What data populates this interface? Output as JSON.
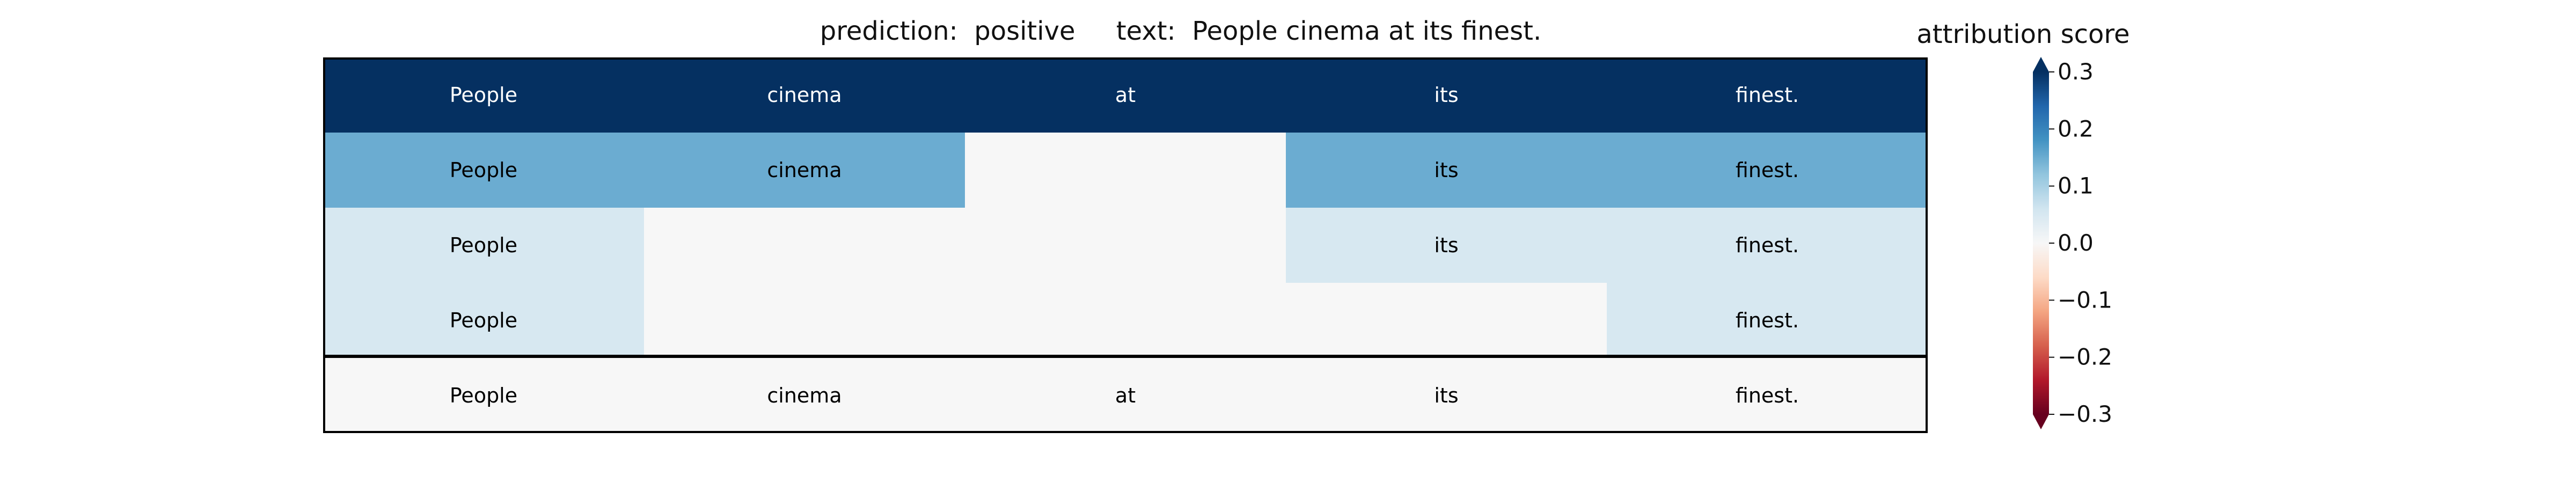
{
  "chart_data": {
    "type": "heatmap",
    "title_prediction_label": "prediction:",
    "title_prediction_value": "positive",
    "title_text_label": "text:",
    "title_text_value": "People cinema at its finest.",
    "tokens": [
      "People",
      "cinema",
      "at",
      "its",
      "finest."
    ],
    "rows": [
      {
        "values": [
          0.3,
          0.3,
          0.3,
          0.3,
          0.3
        ],
        "visible": [
          true,
          true,
          true,
          true,
          true
        ]
      },
      {
        "values": [
          0.15,
          0.15,
          0.0,
          0.15,
          0.15
        ],
        "visible": [
          true,
          true,
          false,
          true,
          true
        ]
      },
      {
        "values": [
          0.05,
          0.0,
          0.0,
          0.05,
          0.05
        ],
        "visible": [
          true,
          false,
          false,
          true,
          true
        ]
      },
      {
        "values": [
          0.05,
          0.0,
          0.0,
          0.0,
          0.05
        ],
        "visible": [
          true,
          false,
          false,
          false,
          true
        ]
      },
      {
        "values": [
          0.0,
          0.0,
          0.0,
          0.0,
          0.0
        ],
        "visible": [
          true,
          true,
          true,
          true,
          true
        ]
      }
    ],
    "colorbar": {
      "title": "attribution score",
      "colormap": "RdBu",
      "range": [
        -0.3,
        0.3
      ],
      "ticks": [
        0.3,
        0.2,
        0.1,
        0.0,
        -0.1,
        -0.2,
        -0.3
      ],
      "tick_labels": [
        "0.3",
        "0.2",
        "0.1",
        "0.0",
        "−0.1",
        "−0.2",
        "−0.3"
      ],
      "extend": "both"
    }
  }
}
